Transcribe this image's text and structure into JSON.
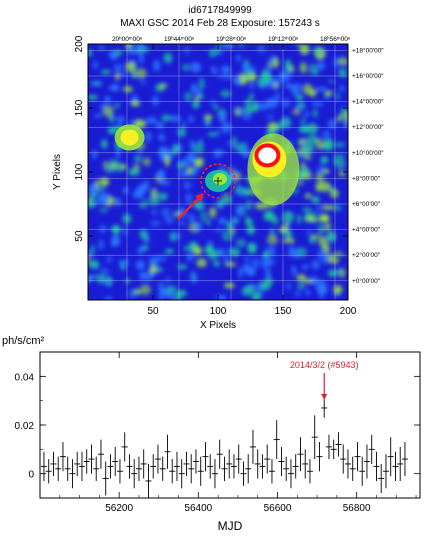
{
  "header": {
    "id_line": "id6717849999",
    "obs_line": "MAXI GSC   2014 Feb 28   Exposure: 157243 s"
  },
  "chart_data": [
    {
      "type": "heatmap",
      "description_text": "",
      "xlabel": "X Pixels",
      "ylabel": "Y Pixels",
      "xlim": [
        0,
        200
      ],
      "ylim": [
        0,
        200
      ],
      "x_ticks": [
        50,
        100,
        150,
        200
      ],
      "y_ticks": [
        50,
        100,
        150,
        200
      ],
      "ra_tick_labels": [
        "20ʰ00ᵐ00ˢ",
        "19ʰ44ᵐ00ˢ",
        "19ʰ28ᵐ00ˢ",
        "19ʰ12ᵐ00ˢ",
        "18ʰ56ᵐ00ˢ"
      ],
      "ra_tick_x": [
        30,
        70,
        110,
        150,
        190
      ],
      "dec_tick_labels": [
        "+18°00′00″",
        "+16°00′00″",
        "+14°00′00″",
        "+12°00′00″",
        "+10°00′00″",
        "+8°00′00″",
        "+6°00′00″",
        "+4°00′00″",
        "+2°00′00″",
        "+0°00′00″"
      ],
      "dec_tick_y": [
        195,
        175,
        155,
        135,
        115,
        95,
        75,
        55,
        35,
        15
      ],
      "sources": [
        {
          "x": 32,
          "y": 127,
          "strength": "medium"
        },
        {
          "x": 138,
          "y": 113,
          "strength": "bright"
        },
        {
          "x": 100,
          "y": 93,
          "strength": "target"
        }
      ],
      "target_circle": {
        "x": 100,
        "y": 93,
        "r": 13
      },
      "colors": {
        "background": "#1a1cd4",
        "low": "#2a78ff",
        "mid": "#1ec8a0",
        "high": "#9be63c",
        "peak": "#f8f020",
        "saturated": "#ff1010",
        "circle": "#ff2020"
      }
    },
    {
      "type": "scatter",
      "ylabel_unit": "ph/s/cm²",
      "xlabel": "MJD",
      "xlim": [
        56000,
        56960
      ],
      "ylim": [
        -0.01,
        0.05
      ],
      "x_ticks": [
        56200,
        56400,
        56600,
        56800
      ],
      "y_ticks": [
        0,
        0.02,
        0.04
      ],
      "y_tick_labels": [
        "0",
        "0.02",
        "0.04"
      ],
      "annotation": {
        "text": "2014/3/2 (#5943)",
        "x": 56718,
        "y": 0.027,
        "color": "#e8202a"
      },
      "x": [
        56010,
        56022,
        56034,
        56046,
        56058,
        56070,
        56082,
        56094,
        56106,
        56118,
        56130,
        56142,
        56154,
        56166,
        56178,
        56190,
        56202,
        56214,
        56226,
        56238,
        56250,
        56262,
        56274,
        56286,
        56298,
        56310,
        56322,
        56334,
        56346,
        56358,
        56370,
        56382,
        56394,
        56406,
        56418,
        56430,
        56442,
        56454,
        56466,
        56478,
        56490,
        56502,
        56514,
        56526,
        56538,
        56550,
        56562,
        56574,
        56586,
        56598,
        56610,
        56622,
        56634,
        56646,
        56658,
        56670,
        56682,
        56694,
        56706,
        56718,
        56730,
        56742,
        56754,
        56766,
        56778,
        56790,
        56802,
        56814,
        56826,
        56838,
        56850,
        56862,
        56874,
        56886,
        56898,
        56910,
        56922
      ],
      "y": [
        0.003,
        0.001,
        0.004,
        0.002,
        0.007,
        0.002,
        0.0,
        0.004,
        0.003,
        0.005,
        0.006,
        0.002,
        0.008,
        -0.002,
        0.003,
        0.005,
        0.001,
        0.011,
        0.003,
        0.0,
        0.002,
        0.004,
        -0.003,
        0.003,
        0.006,
        0.002,
        0.009,
        0.001,
        0.003,
        0.0,
        0.004,
        0.002,
        0.005,
        0.001,
        0.007,
        0.003,
        0.0,
        0.008,
        0.002,
        0.004,
        0.003,
        0.006,
        0.0,
        0.002,
        0.011,
        0.004,
        0.003,
        0.006,
        0.001,
        0.014,
        0.005,
        0.002,
        0.0,
        0.003,
        0.008,
        0.004,
        0.001,
        0.015,
        0.007,
        0.027,
        0.011,
        0.01,
        0.012,
        0.006,
        0.004,
        0.002,
        0.007,
        0.001,
        0.005,
        0.01,
        0.003,
        -0.002,
        0.001,
        0.007,
        0.003,
        0.004,
        0.006
      ],
      "yerr": [
        0.006,
        0.005,
        0.005,
        0.005,
        0.006,
        0.005,
        0.006,
        0.005,
        0.006,
        0.005,
        0.006,
        0.005,
        0.006,
        0.007,
        0.005,
        0.006,
        0.005,
        0.006,
        0.005,
        0.006,
        0.005,
        0.006,
        0.007,
        0.005,
        0.006,
        0.005,
        0.007,
        0.005,
        0.006,
        0.006,
        0.005,
        0.006,
        0.005,
        0.006,
        0.006,
        0.005,
        0.006,
        0.006,
        0.005,
        0.006,
        0.005,
        0.006,
        0.005,
        0.006,
        0.007,
        0.006,
        0.005,
        0.006,
        0.005,
        0.008,
        0.006,
        0.005,
        0.006,
        0.005,
        0.007,
        0.006,
        0.005,
        0.009,
        0.006,
        0.004,
        0.005,
        0.004,
        0.005,
        0.006,
        0.006,
        0.005,
        0.006,
        0.006,
        0.007,
        0.006,
        0.006,
        0.006,
        0.007,
        0.008,
        0.006,
        0.007,
        0.007
      ]
    }
  ]
}
